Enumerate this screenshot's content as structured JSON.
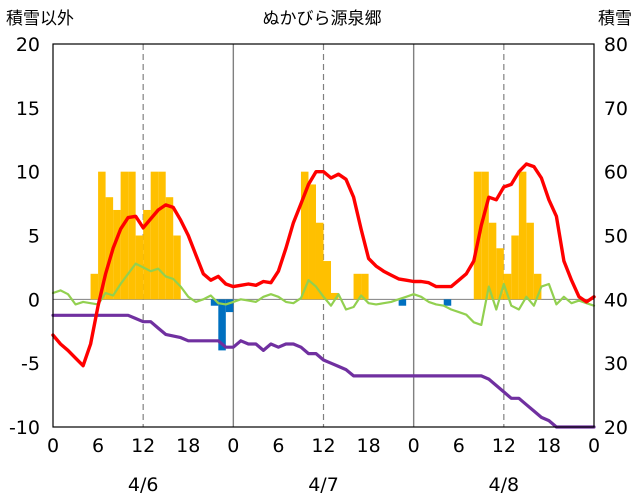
{
  "chart_data": {
    "type": "combo",
    "title": "ぬかびら源泉郷",
    "left_axis": {
      "label": "積雪以外",
      "min": -10,
      "max": 20,
      "ticks": [
        20,
        15,
        10,
        5,
        0,
        -5,
        -10
      ]
    },
    "right_axis": {
      "label": "積雪",
      "min": 20,
      "max": 80,
      "ticks": [
        80,
        70,
        60,
        50,
        40,
        30,
        20
      ]
    },
    "x_axis": {
      "unit": "hour",
      "range": [
        0,
        72
      ],
      "tick_labels": [
        "0",
        "6",
        "12",
        "18",
        "0",
        "6",
        "12",
        "18",
        "0",
        "6",
        "12",
        "18",
        "0"
      ],
      "day_labels": [
        "4/6",
        "4/7",
        "4/8"
      ],
      "day_label_hours": [
        12,
        36,
        60
      ],
      "midnight_lines": [
        24,
        48
      ],
      "noon_lines": [
        12,
        36,
        60
      ],
      "grid": "vertical dashed at noon, solid at midnight"
    },
    "colors": {
      "bars_positive": "#ffc000",
      "bars_negative": "#0070c0",
      "temperature": "#ff0000",
      "light_line": "#92d050",
      "snow_depth": "#7030a0",
      "grid": "#808080",
      "frame": "#000000"
    },
    "bars": [
      {
        "x": 5.5,
        "y": 2
      },
      {
        "x": 6.5,
        "y": 10
      },
      {
        "x": 7.5,
        "y": 8
      },
      {
        "x": 8.5,
        "y": 7
      },
      {
        "x": 9.5,
        "y": 10
      },
      {
        "x": 10.5,
        "y": 10
      },
      {
        "x": 11.5,
        "y": 5
      },
      {
        "x": 12.5,
        "y": 7
      },
      {
        "x": 13.5,
        "y": 10
      },
      {
        "x": 14.5,
        "y": 10
      },
      {
        "x": 15.5,
        "y": 8
      },
      {
        "x": 16.5,
        "y": 5
      },
      {
        "x": 21.5,
        "y": -0.5
      },
      {
        "x": 22.5,
        "y": -4
      },
      {
        "x": 23.5,
        "y": -1
      },
      {
        "x": 33.5,
        "y": 10
      },
      {
        "x": 34.5,
        "y": 9
      },
      {
        "x": 35.5,
        "y": 6
      },
      {
        "x": 36.5,
        "y": 3
      },
      {
        "x": 37.5,
        "y": 0.5
      },
      {
        "x": 40.5,
        "y": 2
      },
      {
        "x": 41.5,
        "y": 2
      },
      {
        "x": 46.5,
        "y": -0.5
      },
      {
        "x": 52.5,
        "y": -0.5
      },
      {
        "x": 56.5,
        "y": 10
      },
      {
        "x": 57.5,
        "y": 10
      },
      {
        "x": 58.5,
        "y": 6
      },
      {
        "x": 59.5,
        "y": 4
      },
      {
        "x": 60.5,
        "y": 2
      },
      {
        "x": 61.5,
        "y": 5
      },
      {
        "x": 62.5,
        "y": 10
      },
      {
        "x": 63.5,
        "y": 6
      },
      {
        "x": 64.5,
        "y": 2
      }
    ],
    "series": [
      {
        "key": "temperature",
        "axis": "left",
        "points": [
          [
            0,
            -2.8
          ],
          [
            1,
            -3.5
          ],
          [
            2,
            -4
          ],
          [
            3,
            -4.6
          ],
          [
            4,
            -5.2
          ],
          [
            5,
            -3.5
          ],
          [
            6,
            -0.5
          ],
          [
            7,
            2
          ],
          [
            8,
            4
          ],
          [
            9,
            5.5
          ],
          [
            10,
            6.4
          ],
          [
            11,
            6.5
          ],
          [
            12,
            5.6
          ],
          [
            13,
            6.3
          ],
          [
            14,
            7
          ],
          [
            15,
            7.4
          ],
          [
            16,
            7.2
          ],
          [
            17,
            6.2
          ],
          [
            18,
            5
          ],
          [
            19,
            3.5
          ],
          [
            20,
            2
          ],
          [
            21,
            1.5
          ],
          [
            22,
            1.8
          ],
          [
            23,
            1.2
          ],
          [
            24,
            1
          ],
          [
            25,
            1.1
          ],
          [
            26,
            1.2
          ],
          [
            27,
            1.1
          ],
          [
            28,
            1.4
          ],
          [
            29,
            1.3
          ],
          [
            30,
            2.2
          ],
          [
            31,
            4
          ],
          [
            32,
            6
          ],
          [
            33,
            7.5
          ],
          [
            34,
            9
          ],
          [
            35,
            10
          ],
          [
            36,
            10
          ],
          [
            37,
            9.5
          ],
          [
            38,
            9.8
          ],
          [
            39,
            9.4
          ],
          [
            40,
            8
          ],
          [
            41,
            5.5
          ],
          [
            42,
            3.2
          ],
          [
            43,
            2.6
          ],
          [
            44,
            2.2
          ],
          [
            45,
            1.9
          ],
          [
            46,
            1.6
          ],
          [
            47,
            1.5
          ],
          [
            48,
            1.4
          ],
          [
            49,
            1.4
          ],
          [
            50,
            1.3
          ],
          [
            51,
            1
          ],
          [
            52,
            1
          ],
          [
            53,
            1
          ],
          [
            54,
            1.5
          ],
          [
            55,
            2
          ],
          [
            56,
            3
          ],
          [
            57,
            5.8
          ],
          [
            58,
            8
          ],
          [
            59,
            7.8
          ],
          [
            60,
            8.8
          ],
          [
            61,
            9
          ],
          [
            62,
            10
          ],
          [
            63,
            10.6
          ],
          [
            64,
            10.4
          ],
          [
            65,
            9.5
          ],
          [
            66,
            7.8
          ],
          [
            67,
            6.5
          ],
          [
            68,
            3
          ],
          [
            69,
            1.5
          ],
          [
            70,
            0.2
          ],
          [
            71,
            -0.2
          ],
          [
            72,
            0.2
          ]
        ]
      },
      {
        "key": "light_line",
        "axis": "left",
        "points": [
          [
            0,
            0.5
          ],
          [
            1,
            0.7
          ],
          [
            2,
            0.4
          ],
          [
            3,
            -0.4
          ],
          [
            4,
            -0.2
          ],
          [
            5,
            -0.3
          ],
          [
            6,
            -0.4
          ],
          [
            7,
            0.5
          ],
          [
            8,
            0.3
          ],
          [
            9,
            1.2
          ],
          [
            10,
            2
          ],
          [
            11,
            2.8
          ],
          [
            12,
            2.5
          ],
          [
            13,
            2.2
          ],
          [
            14,
            2.4
          ],
          [
            15,
            1.8
          ],
          [
            16,
            1.6
          ],
          [
            17,
            1
          ],
          [
            18,
            0.2
          ],
          [
            19,
            -0.2
          ],
          [
            20,
            0
          ],
          [
            21,
            0.3
          ],
          [
            22,
            -0.3
          ],
          [
            23,
            -0.4
          ],
          [
            24,
            -0.2
          ],
          [
            25,
            0
          ],
          [
            26,
            -0.1
          ],
          [
            27,
            -0.2
          ],
          [
            28,
            0.2
          ],
          [
            29,
            0.4
          ],
          [
            30,
            0.2
          ],
          [
            31,
            -0.2
          ],
          [
            32,
            -0.3
          ],
          [
            33,
            0.1
          ],
          [
            34,
            1.5
          ],
          [
            35,
            1
          ],
          [
            36,
            0.2
          ],
          [
            37,
            -0.5
          ],
          [
            38,
            0.4
          ],
          [
            39,
            -0.8
          ],
          [
            40,
            -0.6
          ],
          [
            41,
            0.3
          ],
          [
            42,
            -0.3
          ],
          [
            43,
            -0.4
          ],
          [
            44,
            -0.3
          ],
          [
            45,
            -0.2
          ],
          [
            46,
            0
          ],
          [
            47,
            0.2
          ],
          [
            48,
            0.4
          ],
          [
            49,
            0.2
          ],
          [
            50,
            -0.2
          ],
          [
            51,
            -0.4
          ],
          [
            52,
            -0.5
          ],
          [
            53,
            -0.8
          ],
          [
            54,
            -1
          ],
          [
            55,
            -1.2
          ],
          [
            56,
            -1.8
          ],
          [
            57,
            -2
          ],
          [
            58,
            1
          ],
          [
            59,
            -0.8
          ],
          [
            60,
            1.2
          ],
          [
            61,
            -0.5
          ],
          [
            62,
            -0.8
          ],
          [
            63,
            0.2
          ],
          [
            64,
            -0.5
          ],
          [
            65,
            1
          ],
          [
            66,
            1.2
          ],
          [
            67,
            -0.4
          ],
          [
            68,
            0.2
          ],
          [
            69,
            -0.3
          ],
          [
            70,
            -0.1
          ],
          [
            71,
            -0.3
          ],
          [
            72,
            -0.5
          ]
        ]
      },
      {
        "key": "snow_depth",
        "axis": "right",
        "points": [
          [
            0,
            37.5
          ],
          [
            10,
            37.5
          ],
          [
            11,
            37
          ],
          [
            12,
            36.5
          ],
          [
            13,
            36.5
          ],
          [
            14,
            35.5
          ],
          [
            15,
            34.5
          ],
          [
            17,
            34
          ],
          [
            18,
            33.5
          ],
          [
            22,
            33.5
          ],
          [
            23,
            32.5
          ],
          [
            24,
            32.5
          ],
          [
            25,
            33.5
          ],
          [
            26,
            33
          ],
          [
            27,
            33
          ],
          [
            28,
            32
          ],
          [
            29,
            33
          ],
          [
            30,
            32.5
          ],
          [
            31,
            33
          ],
          [
            32,
            33
          ],
          [
            33,
            32.5
          ],
          [
            34,
            31.5
          ],
          [
            35,
            31.5
          ],
          [
            36,
            30.5
          ],
          [
            37,
            30
          ],
          [
            38,
            29.5
          ],
          [
            39,
            29
          ],
          [
            40,
            28
          ],
          [
            48,
            28
          ],
          [
            57,
            28
          ],
          [
            58,
            27.5
          ],
          [
            59,
            26.5
          ],
          [
            60,
            25.5
          ],
          [
            61,
            24.5
          ],
          [
            62,
            24.5
          ],
          [
            63,
            23.5
          ],
          [
            64,
            22.5
          ],
          [
            65,
            21.5
          ],
          [
            66,
            21
          ],
          [
            67,
            20
          ],
          [
            72,
            20
          ]
        ]
      }
    ]
  }
}
